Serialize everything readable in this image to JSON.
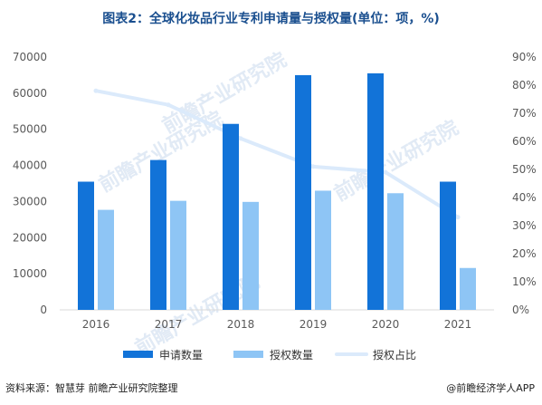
{
  "title": "图表2：全球化妆品行业专利申请量与授权量(单位：项，%)",
  "source": "资料来源：智慧芽 前瞻产业研究院整理",
  "brand": "@前瞻经济学人APP",
  "watermark": "前瞻产业研究院",
  "colors": {
    "applications": "#1273d8",
    "grants": "#8ec5f5",
    "ratio": "#dbeafb"
  },
  "chart_data": {
    "type": "bar",
    "categories": [
      "2016",
      "2017",
      "2018",
      "2019",
      "2020",
      "2021"
    ],
    "series": [
      {
        "name": "申请数量",
        "type": "bar",
        "axis": "left",
        "values": [
          35500,
          41500,
          51500,
          65000,
          65500,
          35500
        ]
      },
      {
        "name": "授权数量",
        "type": "bar",
        "axis": "left",
        "values": [
          27700,
          30200,
          29900,
          33000,
          32300,
          11600
        ]
      },
      {
        "name": "授权占比",
        "type": "line",
        "axis": "right",
        "values": [
          78,
          73,
          61,
          51,
          49,
          33
        ]
      }
    ],
    "left_axis": {
      "min": 0,
      "max": 70000,
      "ticks": [
        "0",
        "10000",
        "20000",
        "30000",
        "40000",
        "50000",
        "60000",
        "70000"
      ]
    },
    "right_axis": {
      "min": 0,
      "max": 90,
      "ticks": [
        "0%",
        "10%",
        "20%",
        "30%",
        "40%",
        "50%",
        "60%",
        "70%",
        "80%",
        "90%"
      ]
    },
    "grid": false,
    "legend_position": "bottom"
  }
}
